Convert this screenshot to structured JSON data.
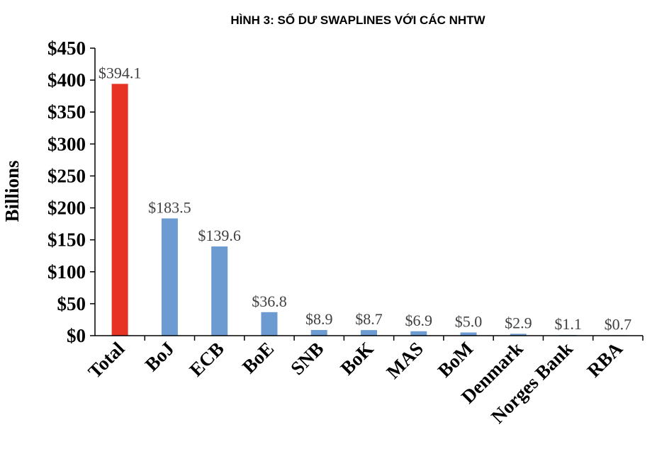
{
  "chart_data": {
    "type": "bar",
    "title": "HÌNH 3: SỐ DƯ SWAPLINES VỚI CÁC NHTW",
    "xlabel": "",
    "ylabel": "Billions",
    "ylim": [
      0,
      450
    ],
    "yticks": [
      0,
      50,
      100,
      150,
      200,
      250,
      300,
      350,
      400,
      450
    ],
    "ytick_labels": [
      "$0",
      "$50",
      "$100",
      "$150",
      "$200",
      "$250",
      "$300",
      "$350",
      "$400",
      "$450"
    ],
    "categories": [
      "Total",
      "BoJ",
      "ECB",
      "BoE",
      "SNB",
      "BoK",
      "MAS",
      "BoM",
      "Denmark",
      "Norges Bank",
      "RBA"
    ],
    "values": [
      394.1,
      183.5,
      139.6,
      36.8,
      8.9,
      8.7,
      6.9,
      5.0,
      2.9,
      1.1,
      0.7
    ],
    "data_labels": [
      "$394.1",
      "$183.5",
      "$139.6",
      "$36.8",
      "$8.9",
      "$8.7",
      "$6.9",
      "$5.0",
      "$2.9",
      "$1.1",
      "$0.7"
    ],
    "colors": [
      "#e63323",
      "#6c9bd2",
      "#6c9bd2",
      "#6c9bd2",
      "#6c9bd2",
      "#6c9bd2",
      "#6c9bd2",
      "#6c9bd2",
      "#6c9bd2",
      "#6c9bd2",
      "#6c9bd2"
    ],
    "grid": false,
    "legend": "none"
  }
}
